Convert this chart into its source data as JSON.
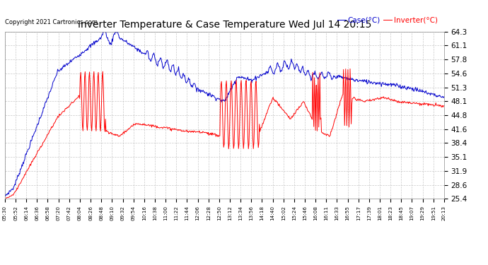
{
  "title": "Inverter Temperature & Case Temperature Wed Jul 14 20:15",
  "copyright_text": "Copyright 2021 Cartronics.com",
  "legend_case": "Case(°C)",
  "legend_inverter": "Inverter(°C)",
  "yticks": [
    25.4,
    28.6,
    31.9,
    35.1,
    38.4,
    41.6,
    44.8,
    48.1,
    51.3,
    54.6,
    57.8,
    61.1,
    64.3
  ],
  "ymin": 25.4,
  "ymax": 64.3,
  "background_color": "#ffffff",
  "plot_bg_color": "#ffffff",
  "grid_color": "#bbbbbb",
  "case_color": "#0000cc",
  "inverter_color": "#ff0000",
  "legend_case_color": "#0000cc",
  "legend_inverter_color": "#ff0000",
  "xtick_labels": [
    "05:30",
    "05:52",
    "06:14",
    "06:36",
    "06:58",
    "07:20",
    "07:42",
    "08:04",
    "08:26",
    "08:48",
    "09:10",
    "09:32",
    "09:54",
    "10:16",
    "10:38",
    "11:00",
    "11:22",
    "11:44",
    "12:06",
    "12:28",
    "12:50",
    "13:12",
    "13:34",
    "13:56",
    "14:18",
    "14:40",
    "15:02",
    "15:24",
    "15:46",
    "16:08",
    "16:11",
    "16:33",
    "16:55",
    "17:17",
    "17:39",
    "18:01",
    "18:23",
    "18:45",
    "19:07",
    "19:29",
    "19:51",
    "20:13"
  ]
}
